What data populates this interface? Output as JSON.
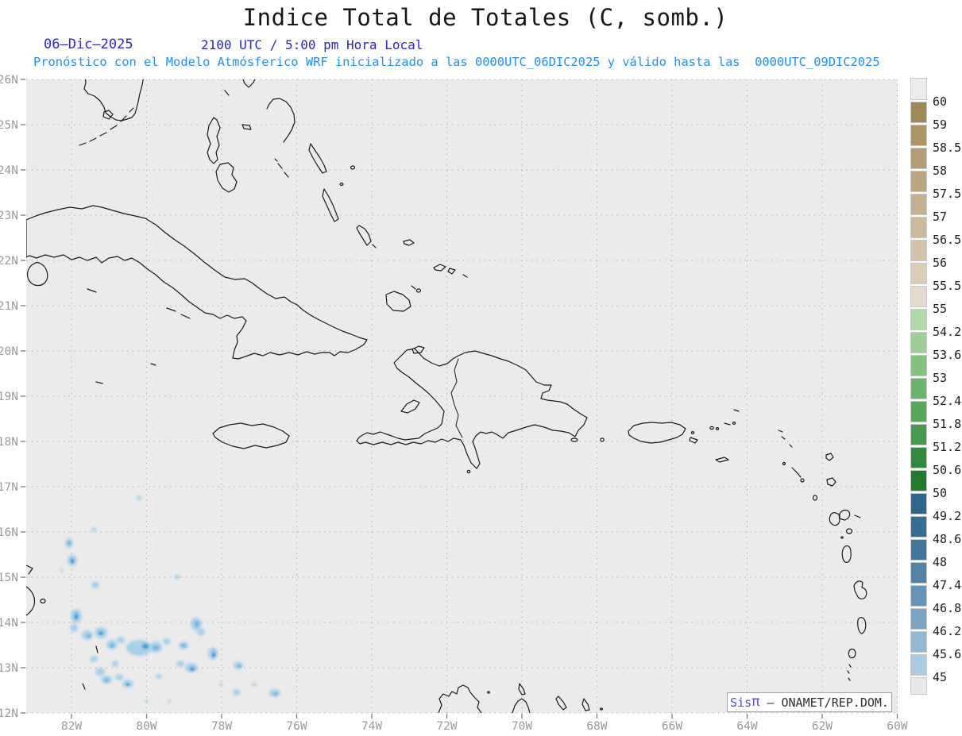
{
  "header": {
    "title": "Indice Total de Totales (C, somb.)",
    "date": "06–Dic–2025",
    "time": "2100 UTC / 5:00 pm Hora Local",
    "forecast": "Pronóstico con el Modelo Atmósferico WRF inicializado a las 0000UTC_06DIC2025 y válido hasta las  0000UTC_09DIC2025"
  },
  "credit": {
    "brand": "Sis",
    "pi": "π",
    "org": " – ONAMET/REP.DOM."
  },
  "map": {
    "bg_color": "#ebebeb",
    "grid_color": "#a8a8a8",
    "coast_color": "#1a1a1a",
    "tick_color": "#7d7d7d",
    "axis_label_color": "#9a9a9a",
    "lat_ticks": [
      {
        "label": "26N",
        "value": 26
      },
      {
        "label": "25N",
        "value": 25
      },
      {
        "label": "24N",
        "value": 24
      },
      {
        "label": "23N",
        "value": 23
      },
      {
        "label": "22N",
        "value": 22
      },
      {
        "label": "21N",
        "value": 21
      },
      {
        "label": "20N",
        "value": 20
      },
      {
        "label": "19N",
        "value": 19
      },
      {
        "label": "18N",
        "value": 18
      },
      {
        "label": "17N",
        "value": 17
      },
      {
        "label": "16N",
        "value": 16
      },
      {
        "label": "15N",
        "value": 15
      },
      {
        "label": "14N",
        "value": 14
      },
      {
        "label": "13N",
        "value": 13
      },
      {
        "label": "12N",
        "value": 12
      }
    ],
    "lon_ticks": [
      {
        "label": "82W",
        "value": 82
      },
      {
        "label": "80W",
        "value": 80
      },
      {
        "label": "78W",
        "value": 78
      },
      {
        "label": "76W",
        "value": 76
      },
      {
        "label": "74W",
        "value": 74
      },
      {
        "label": "72W",
        "value": 72
      },
      {
        "label": "70W",
        "value": 70
      },
      {
        "label": "68W",
        "value": 68
      },
      {
        "label": "66W",
        "value": 66
      },
      {
        "label": "64W",
        "value": 64
      },
      {
        "label": "62W",
        "value": 62
      },
      {
        "label": "60W",
        "value": 60
      }
    ]
  },
  "colorbar": {
    "tick_labels": [
      "60",
      "59",
      "58.5",
      "58",
      "57.5",
      "57",
      "56.5",
      "56",
      "55.5",
      "55",
      "54.2",
      "53.6",
      "53",
      "52.4",
      "51.8",
      "51.2",
      "50.6",
      "50",
      "49.2",
      "48.6",
      "48",
      "47.4",
      "46.8",
      "46.2",
      "45.6",
      "45"
    ],
    "segment_colors": [
      "#ececec",
      "#a08859",
      "#ad9568",
      "#b49d74",
      "#bca782",
      "#c4b18f",
      "#ccba9d",
      "#d3c3ab",
      "#dacdb9",
      "#e3d9cc",
      "#b2d9aa",
      "#9ccf94",
      "#82c17f",
      "#6bb46c",
      "#58a85c",
      "#45984d",
      "#33893d",
      "#227a2c",
      "#2e6589",
      "#366d91",
      "#42779b",
      "#5384a8",
      "#6693b6",
      "#7ba4c4",
      "#92b8d4",
      "#abcbe2",
      "#e9e9e9"
    ]
  },
  "shading": {
    "light_color": "#a9d1e9",
    "mid_color": "#7cb6da",
    "dark_color": "#5593c2",
    "light": [
      [
        175,
        627,
        3,
        3
      ],
      [
        118,
        667,
        3,
        3
      ],
      [
        87,
        684,
        5,
        6
      ],
      [
        91,
        706,
        6,
        7
      ],
      [
        78,
        718,
        2,
        2
      ],
      [
        120,
        737,
        5,
        4
      ],
      [
        223,
        727,
        3,
        3
      ],
      [
        96,
        776,
        7,
        9
      ],
      [
        93,
        791,
        5,
        5
      ],
      [
        110,
        800,
        7,
        6
      ],
      [
        127,
        797,
        8,
        7
      ],
      [
        141,
        812,
        7,
        6
      ],
      [
        152,
        806,
        5,
        4
      ],
      [
        175,
        816,
        16,
        10
      ],
      [
        196,
        815,
        8,
        7
      ],
      [
        210,
        808,
        5,
        4
      ],
      [
        231,
        813,
        6,
        5
      ],
      [
        247,
        786,
        7,
        8
      ],
      [
        253,
        796,
        5,
        5
      ],
      [
        268,
        823,
        6,
        8
      ],
      [
        241,
        841,
        8,
        6
      ],
      [
        227,
        836,
        5,
        4
      ],
      [
        300,
        838,
        6,
        5
      ],
      [
        320,
        862,
        3,
        2
      ],
      [
        346,
        873,
        7,
        5
      ],
      [
        118,
        830,
        5,
        4
      ],
      [
        126,
        846,
        6,
        5
      ],
      [
        134,
        856,
        7,
        5
      ],
      [
        150,
        853,
        5,
        4
      ],
      [
        161,
        861,
        7,
        5
      ],
      [
        145,
        836,
        4,
        4
      ],
      [
        200,
        852,
        4,
        3
      ],
      [
        184,
        883,
        2,
        2
      ],
      [
        213,
        883,
        2,
        2
      ],
      [
        278,
        862,
        2,
        2
      ],
      [
        298,
        872,
        5,
        4
      ]
    ],
    "mid": [
      [
        87,
        684,
        2.5,
        3
      ],
      [
        91,
        706,
        3,
        3.5
      ],
      [
        96,
        776,
        3,
        5
      ],
      [
        127,
        797,
        4,
        3
      ],
      [
        141,
        813,
        3,
        3
      ],
      [
        183,
        814,
        5,
        4
      ],
      [
        231,
        813,
        3,
        2
      ],
      [
        248,
        786,
        3,
        4
      ],
      [
        269,
        824,
        3,
        4
      ],
      [
        242,
        842,
        4,
        3
      ],
      [
        301,
        839,
        3,
        2
      ],
      [
        347,
        874,
        3,
        2
      ],
      [
        134,
        857,
        3,
        2
      ],
      [
        161,
        862,
        3,
        2
      ],
      [
        112,
        801,
        3,
        2
      ],
      [
        196,
        816,
        4,
        3
      ]
    ],
    "dark": [
      [
        91,
        707,
        1.5,
        2
      ],
      [
        127,
        798,
        2,
        1.5
      ],
      [
        183,
        814,
        2.5,
        2
      ],
      [
        242,
        843,
        2,
        1.5
      ],
      [
        96,
        777,
        1.5,
        2.5
      ],
      [
        161,
        862,
        1.5,
        1
      ],
      [
        269,
        825,
        1.5,
        2
      ]
    ]
  }
}
